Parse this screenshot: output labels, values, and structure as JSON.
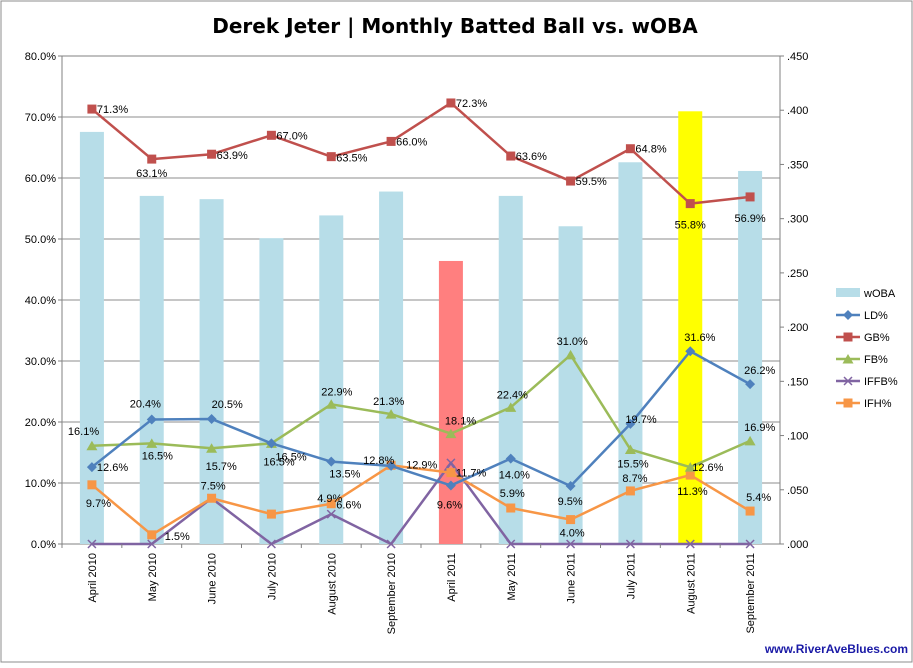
{
  "chart_data": {
    "type": "bar",
    "title": "Derek Jeter | Monthly Batted Ball vs. wOBA",
    "categories": [
      "April 2010",
      "May 2010",
      "June 2010",
      "July 2010",
      "August 2010",
      "September 2010",
      "April 2011",
      "May 2011",
      "June 2011",
      "July 2011",
      "August 2011",
      "September 2011"
    ],
    "y_left": {
      "min": 0,
      "max": 80,
      "step": 10,
      "tick_labels": [
        "0.0%",
        "10.0%",
        "20.0%",
        "30.0%",
        "40.0%",
        "50.0%",
        "60.0%",
        "70.0%",
        "80.0%"
      ]
    },
    "y_right": {
      "min": 0,
      "max": 0.45,
      "step": 0.05,
      "tick_labels": [
        ".000",
        ".050",
        ".100",
        ".150",
        ".200",
        ".250",
        ".300",
        ".350",
        ".400",
        ".450"
      ]
    },
    "grid": true,
    "legend_position": "right",
    "bar_series": {
      "name": "wOBA",
      "axis": "right",
      "color": "#b7dde8",
      "values": [
        0.38,
        0.321,
        0.318,
        0.282,
        0.303,
        0.325,
        0.261,
        0.321,
        0.293,
        0.352,
        0.399,
        0.344
      ],
      "highlight_colors": {
        "6": "#ff7f7f",
        "10": "#ffff00"
      }
    },
    "series": [
      {
        "name": "LD%",
        "color": "#4f81bd",
        "marker": "diamond",
        "values": [
          12.6,
          20.4,
          20.5,
          16.5,
          13.5,
          12.8,
          9.6,
          14.0,
          9.5,
          19.7,
          31.6,
          26.2
        ],
        "labels": [
          "12.6%",
          "20.4%",
          "20.5%",
          "16.5%",
          "13.5%",
          "12.8%",
          "9.6%",
          "14.0%",
          "9.5%",
          "19.7%",
          "31.6%",
          "26.2%"
        ]
      },
      {
        "name": "GB%",
        "color": "#c0504d",
        "marker": "square",
        "values": [
          71.3,
          63.1,
          63.9,
          67.0,
          63.5,
          66.0,
          72.3,
          63.6,
          59.5,
          64.8,
          55.8,
          56.9
        ],
        "labels": [
          "71.3%",
          "63.1%",
          "63.9%",
          "67.0%",
          "63.5%",
          "66.0%",
          "72.3%",
          "63.6%",
          "59.5%",
          "64.8%",
          "55.8%",
          "56.9%"
        ]
      },
      {
        "name": "FB%",
        "color": "#9bbb59",
        "marker": "triangle",
        "values": [
          16.1,
          16.5,
          15.7,
          16.5,
          22.9,
          21.3,
          18.1,
          22.4,
          31.0,
          15.5,
          12.6,
          16.9
        ],
        "labels": [
          "16.1%",
          "16.5%",
          "15.7%",
          "16.5%",
          "22.9%",
          "21.3%",
          "18.1%",
          "22.4%",
          "31.0%",
          "15.5%",
          "12.6%",
          "16.9%"
        ]
      },
      {
        "name": "IFFB%",
        "color": "#8064a2",
        "marker": "x",
        "values": [
          0,
          0,
          7.5,
          0,
          4.9,
          0,
          13.3,
          0,
          0,
          0,
          0,
          0
        ],
        "labels": [
          "",
          "",
          "7.5%",
          "",
          "4.9%",
          "",
          "",
          "",
          "",
          "",
          "",
          ""
        ]
      },
      {
        "name": "IFH%",
        "color": "#f79646",
        "marker": "square",
        "values": [
          9.7,
          1.5,
          7.5,
          4.9,
          6.6,
          12.9,
          11.7,
          5.9,
          4.0,
          8.7,
          11.3,
          5.4
        ],
        "labels": [
          "9.7%",
          "1.5%",
          "",
          "",
          "6.6%",
          "12.9%",
          "11.7%",
          "5.9%",
          "4.0%",
          "8.7%",
          "11.3%",
          "5.4%"
        ]
      }
    ],
    "watermark": "www.RiverAveBlues.com"
  }
}
